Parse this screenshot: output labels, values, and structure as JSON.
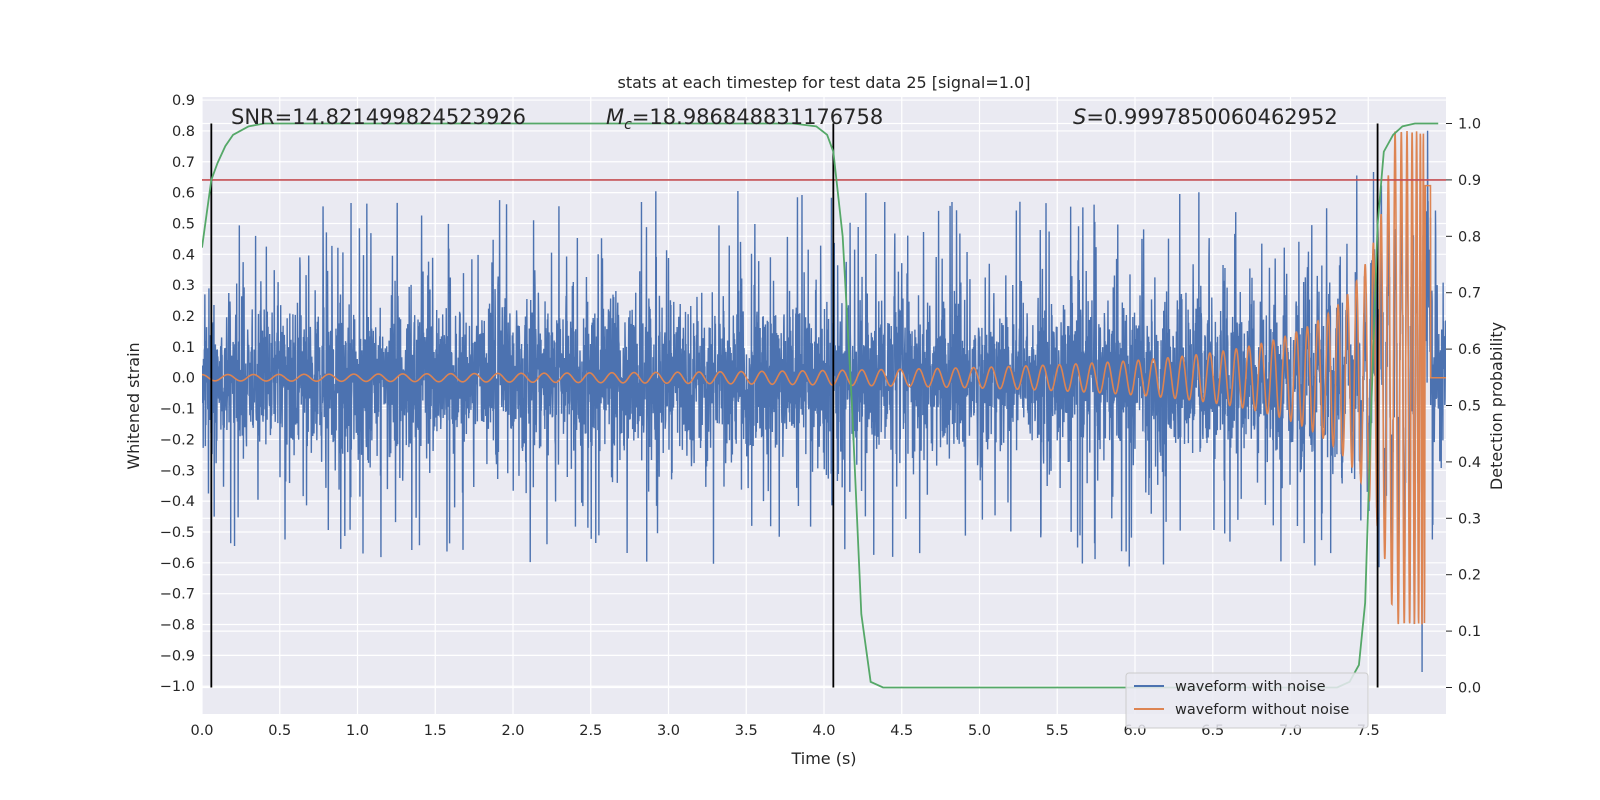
{
  "chart_data": {
    "type": "line",
    "title": "stats at each timestep for test data 25 [signal=1.0]",
    "xlabel": "Time (s)",
    "ylabel": "Whitened strain",
    "y2label": "Detection probability",
    "xlim": [
      0.0,
      8.0
    ],
    "ylim": [
      -1.09,
      0.91
    ],
    "y2lim": [
      -0.047,
      1.047
    ],
    "xticks": [
      "0.0",
      "0.5",
      "1.0",
      "1.5",
      "2.0",
      "2.5",
      "3.0",
      "3.5",
      "4.0",
      "4.5",
      "5.0",
      "5.5",
      "6.0",
      "6.5",
      "7.0",
      "7.5"
    ],
    "yticks": [
      "0.9",
      "0.8",
      "0.7",
      "0.6",
      "0.5",
      "0.4",
      "0.3",
      "0.2",
      "0.1",
      "0.0",
      "−0.1",
      "−0.2",
      "−0.3",
      "−0.4",
      "−0.5",
      "−0.6",
      "−0.7",
      "−0.8",
      "−0.9",
      "−1.0"
    ],
    "y2ticks": [
      "1.0",
      "0.9",
      "0.8",
      "0.7",
      "0.6",
      "0.5",
      "0.4",
      "0.3",
      "0.2",
      "0.1",
      "0.0"
    ],
    "grid": true,
    "legend_position": "lower-right",
    "annotations": {
      "snr": "SNR=14.821499824523926",
      "mc_symbol": "M",
      "mc_sub": "c",
      "mc_value": "=18.986848831176758",
      "s_symbol": "S",
      "s_value": "=0.9997850060462952"
    },
    "threshold_probability": 0.9,
    "vertical_markers_time": [
      0.06,
      4.06,
      7.56
    ],
    "series": [
      {
        "name": "waveform with noise",
        "color": "#4c72b0",
        "description": "noisy whitened strain, amplitude ~0.2 baseline with spikes to ~0.65 and -0.7, from 0.0 to 8.0 s",
        "envelope_up": [
          [
            0.0,
            0.62
          ],
          [
            1.0,
            0.62
          ],
          [
            2.0,
            0.62
          ],
          [
            3.0,
            0.62
          ],
          [
            4.0,
            0.62
          ],
          [
            5.0,
            0.62
          ],
          [
            6.0,
            0.62
          ],
          [
            7.0,
            0.63
          ],
          [
            7.5,
            0.66
          ],
          [
            7.8,
            0.72
          ],
          [
            7.87,
            0.82
          ],
          [
            8.0,
            0.6
          ]
        ],
        "envelope_down": [
          [
            0.0,
            -0.69
          ],
          [
            1.0,
            -0.61
          ],
          [
            2.0,
            -0.6
          ],
          [
            3.0,
            -0.65
          ],
          [
            4.0,
            -0.62
          ],
          [
            5.0,
            -0.63
          ],
          [
            6.0,
            -0.62
          ],
          [
            7.0,
            -0.62
          ],
          [
            7.5,
            -0.65
          ],
          [
            7.8,
            -0.8
          ],
          [
            7.86,
            -1.0
          ],
          [
            8.0,
            -0.5
          ]
        ]
      },
      {
        "name": "waveform without noise",
        "color": "#dd8452",
        "description": "chirp signal, amplitude ~0.01 rising to ~0.8 at merger near 7.87 s, then zero",
        "merger_time": 7.87,
        "end_time": 7.9,
        "amplitude_start": 0.01,
        "amplitude_peak": 0.8
      },
      {
        "name": "",
        "axis": "right",
        "color": "#55a868",
        "points": [
          [
            0.0,
            0.78
          ],
          [
            0.03,
            0.84
          ],
          [
            0.06,
            0.9
          ],
          [
            0.1,
            0.93
          ],
          [
            0.15,
            0.96
          ],
          [
            0.2,
            0.98
          ],
          [
            0.3,
            0.995
          ],
          [
            0.4,
            1.0
          ],
          [
            1.0,
            1.0
          ],
          [
            2.0,
            1.0
          ],
          [
            3.0,
            1.0
          ],
          [
            3.8,
            1.0
          ],
          [
            3.95,
            0.995
          ],
          [
            4.02,
            0.98
          ],
          [
            4.06,
            0.95
          ],
          [
            4.12,
            0.8
          ],
          [
            4.18,
            0.5
          ],
          [
            4.24,
            0.13
          ],
          [
            4.3,
            0.01
          ],
          [
            4.38,
            0.0
          ],
          [
            5.0,
            0.0
          ],
          [
            6.0,
            0.0
          ],
          [
            7.0,
            0.0
          ],
          [
            7.3,
            0.0
          ],
          [
            7.38,
            0.01
          ],
          [
            7.44,
            0.04
          ],
          [
            7.48,
            0.15
          ],
          [
            7.52,
            0.5
          ],
          [
            7.56,
            0.82
          ],
          [
            7.6,
            0.95
          ],
          [
            7.66,
            0.98
          ],
          [
            7.72,
            0.995
          ],
          [
            7.8,
            1.0
          ],
          [
            7.95,
            1.0
          ]
        ]
      }
    ]
  }
}
